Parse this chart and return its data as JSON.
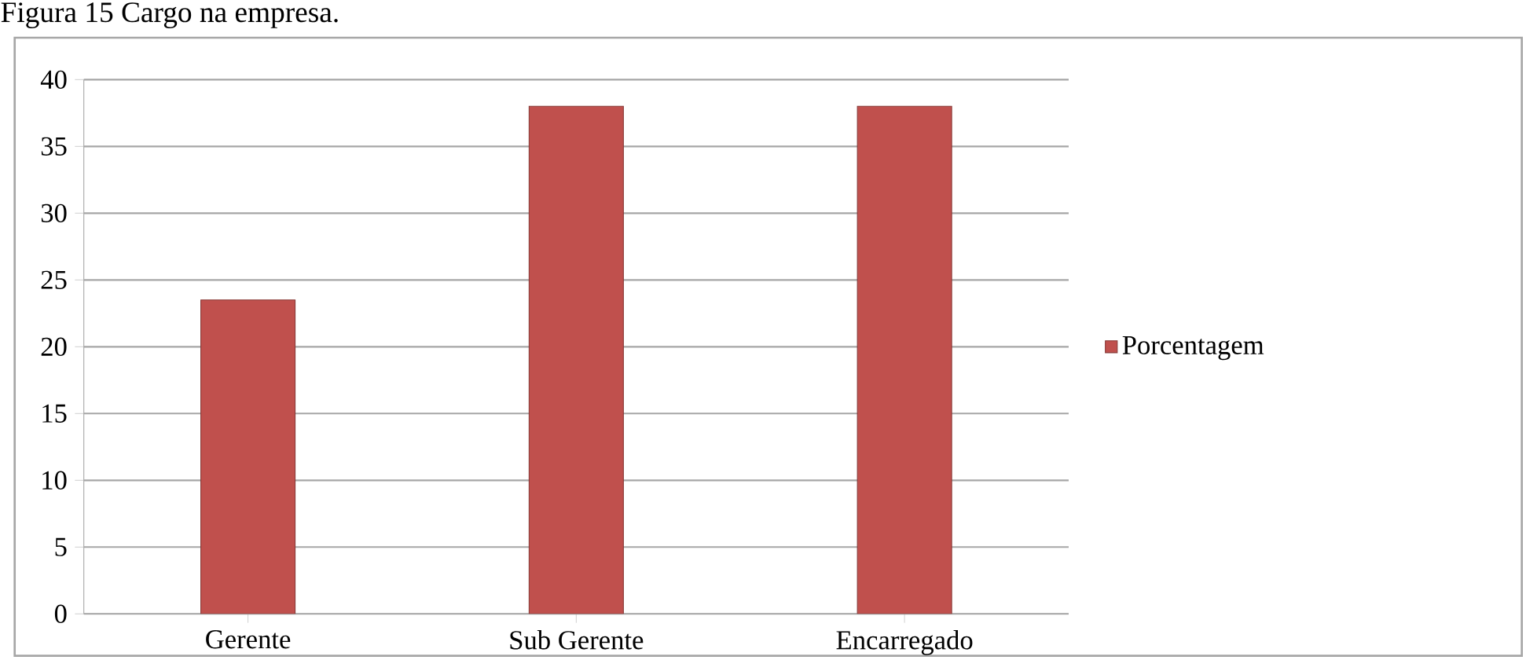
{
  "chart_data": {
    "type": "bar",
    "title": "Figura 15 Cargo na empresa.",
    "categories": [
      "Gerente",
      "Sub Gerente",
      "Encarregado"
    ],
    "series": [
      {
        "name": "Porcentagem",
        "color": "#c0504d",
        "values": [
          23.5,
          38,
          38
        ]
      }
    ],
    "ylim": [
      0,
      40
    ],
    "yticks": [
      0,
      5,
      10,
      15,
      20,
      25,
      30,
      35,
      40
    ],
    "grid": "y",
    "legend": "right"
  }
}
